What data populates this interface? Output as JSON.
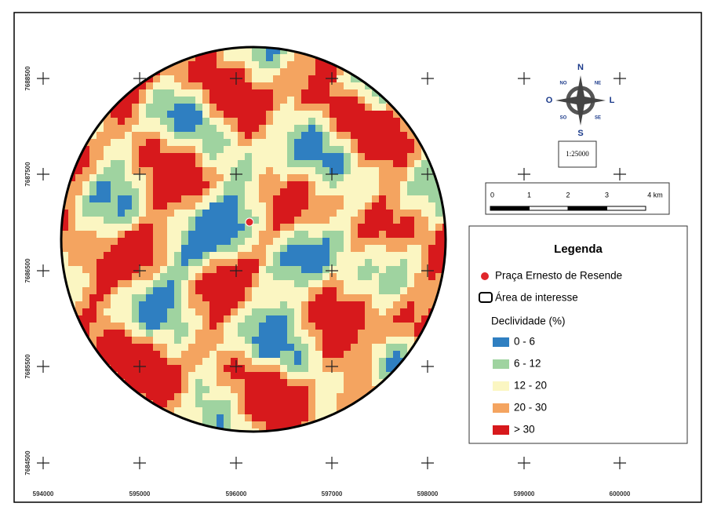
{
  "map": {
    "x_labels": [
      "594000",
      "595000",
      "596000",
      "597000",
      "598000",
      "599000",
      "600000"
    ],
    "y_labels": [
      "7688500",
      "7687500",
      "7686500",
      "7685500",
      "7684500"
    ],
    "compass": {
      "n": "N",
      "s": "S",
      "w": "O",
      "e": "L",
      "nw": "NO",
      "ne": "NE",
      "sw": "SO",
      "se": "SE"
    },
    "scale_text": "1:25000",
    "scale_bar": [
      "0",
      "1",
      "2",
      "3",
      "4 km"
    ],
    "legend": {
      "title": "Legenda",
      "point": {
        "label": "Praça Ernesto de Resende",
        "color": "#e0262b"
      },
      "area": "Área de interesse",
      "classes_title": "Declividade (%)",
      "classes": [
        {
          "label": "0 - 6",
          "color": "#2f7fc1"
        },
        {
          "label": "6 - 12",
          "color": "#9fd3a0"
        },
        {
          "label": "12 - 20",
          "color": "#fbf6c2"
        },
        {
          "label": "20 - 30",
          "color": "#f4a460"
        },
        {
          "label": "> 30",
          "color": "#d7191c"
        }
      ]
    }
  }
}
